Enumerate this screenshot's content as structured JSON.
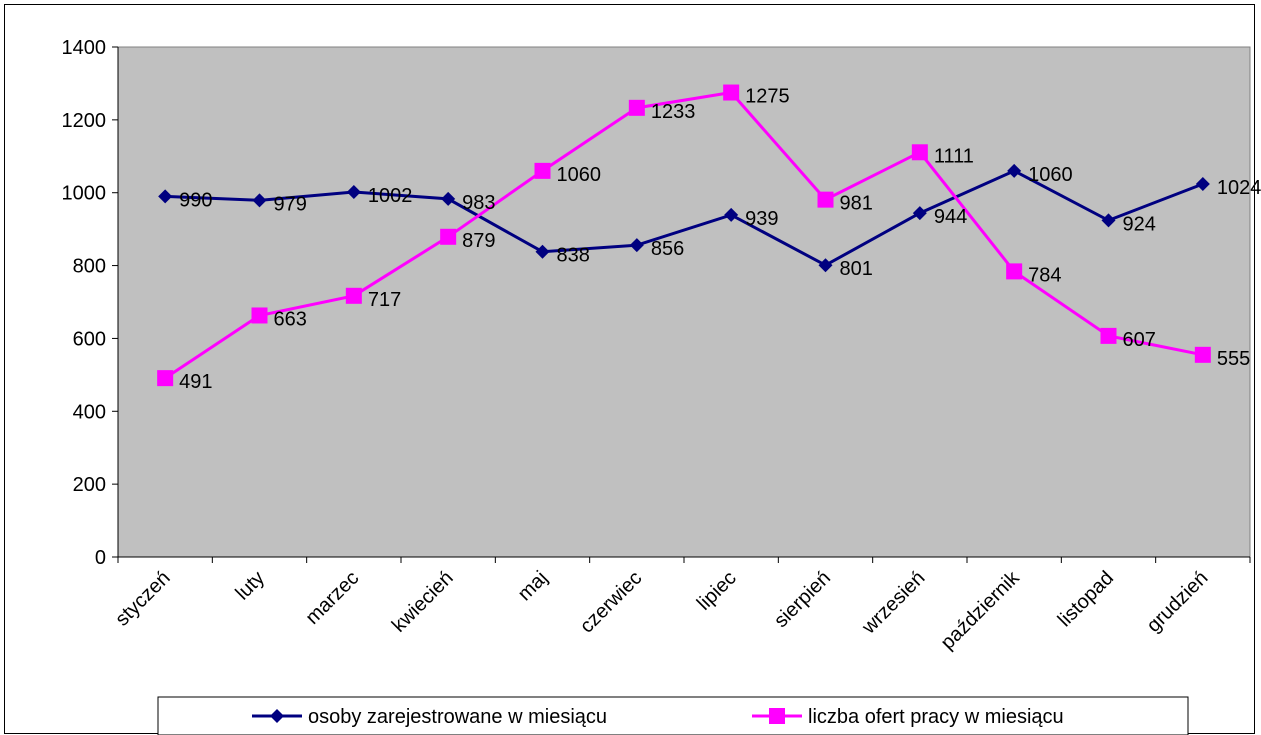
{
  "chart_data": {
    "type": "line",
    "title": "",
    "xlabel": "",
    "ylabel": "",
    "categories": [
      "styczeń",
      "luty",
      "marzec",
      "kwiecień",
      "maj",
      "czerwiec",
      "lipiec",
      "sierpień",
      "wrzesień",
      "październik",
      "listopad",
      "grudzień"
    ],
    "ylim": [
      0,
      1400
    ],
    "yticks": [
      0,
      200,
      400,
      600,
      800,
      1000,
      1200,
      1400
    ],
    "ytick_labels": [
      "0",
      "200",
      "400",
      "600",
      "800",
      "1000",
      "1200",
      "1400"
    ],
    "grid": false,
    "plot_background": "#c0c0c0",
    "legend_position": "bottom",
    "series": [
      {
        "name": "osoby zarejestrowane w miesiącu",
        "color": "#000080",
        "marker": "diamond",
        "values": [
          990,
          979,
          1002,
          983,
          838,
          856,
          939,
          801,
          944,
          1060,
          924,
          1024
        ],
        "labels": [
          "990",
          "979",
          "1002",
          "983",
          "838",
          "856",
          "939",
          "801",
          "944",
          "1060",
          "924",
          "1024"
        ]
      },
      {
        "name": "liczba ofert pracy w miesiącu",
        "color": "#ff00ff",
        "marker": "square",
        "values": [
          491,
          663,
          717,
          879,
          1060,
          1233,
          1275,
          981,
          1111,
          784,
          607,
          555
        ],
        "labels": [
          "491",
          "663",
          "717",
          "879",
          "1060",
          "1233",
          "1275",
          "981",
          "1111",
          "784",
          "607",
          "555"
        ]
      }
    ]
  }
}
